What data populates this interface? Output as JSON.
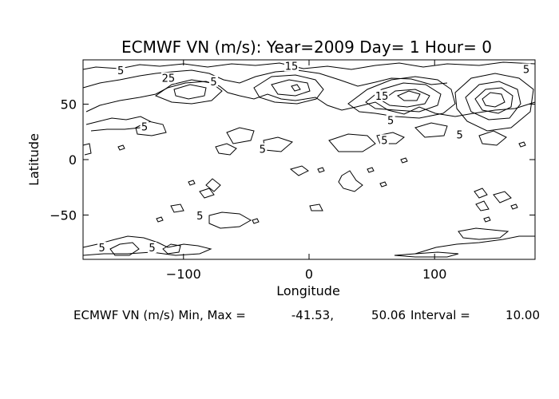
{
  "chart_data": {
    "type": "contour",
    "title": "ECMWF VN (m/s): Year=2009 Day=  1 Hour= 0",
    "xlabel": "Longitude",
    "ylabel": "Latitude",
    "xlim": [
      -180,
      180
    ],
    "ylim": [
      -90,
      90
    ],
    "xticks": [
      -100,
      0,
      100
    ],
    "yticks": [
      -50,
      0,
      50
    ],
    "xtick_labels": [
      "−100",
      "0",
      "100"
    ],
    "ytick_labels": [
      "−50",
      "0",
      "50"
    ],
    "contour_labels": [
      {
        "text": "5",
        "lon": -150,
        "lat": 80
      },
      {
        "text": "25",
        "lon": -112,
        "lat": 73
      },
      {
        "text": "5",
        "lon": -76,
        "lat": 70
      },
      {
        "text": "15",
        "lon": -14,
        "lat": 84
      },
      {
        "text": "5",
        "lon": 173,
        "lat": 81
      },
      {
        "text": "15",
        "lon": 58,
        "lat": 57
      },
      {
        "text": "5",
        "lon": 65,
        "lat": 35
      },
      {
        "text": "5",
        "lon": 120,
        "lat": 22
      },
      {
        "text": "5",
        "lon": -131,
        "lat": 29
      },
      {
        "text": "5",
        "lon": -37,
        "lat": 9
      },
      {
        "text": "5",
        "lon": 60,
        "lat": 17
      },
      {
        "text": "5",
        "lon": -87,
        "lat": -51
      },
      {
        "text": "5",
        "lon": -165,
        "lat": -80
      },
      {
        "text": "5",
        "lon": -125,
        "lat": -80
      }
    ],
    "stats": {
      "caption": "ECMWF VN (m/s) Min, Max =",
      "min": "-41.53,",
      "max": "50.06",
      "interval_label": "Interval =",
      "interval": "10.00"
    }
  }
}
